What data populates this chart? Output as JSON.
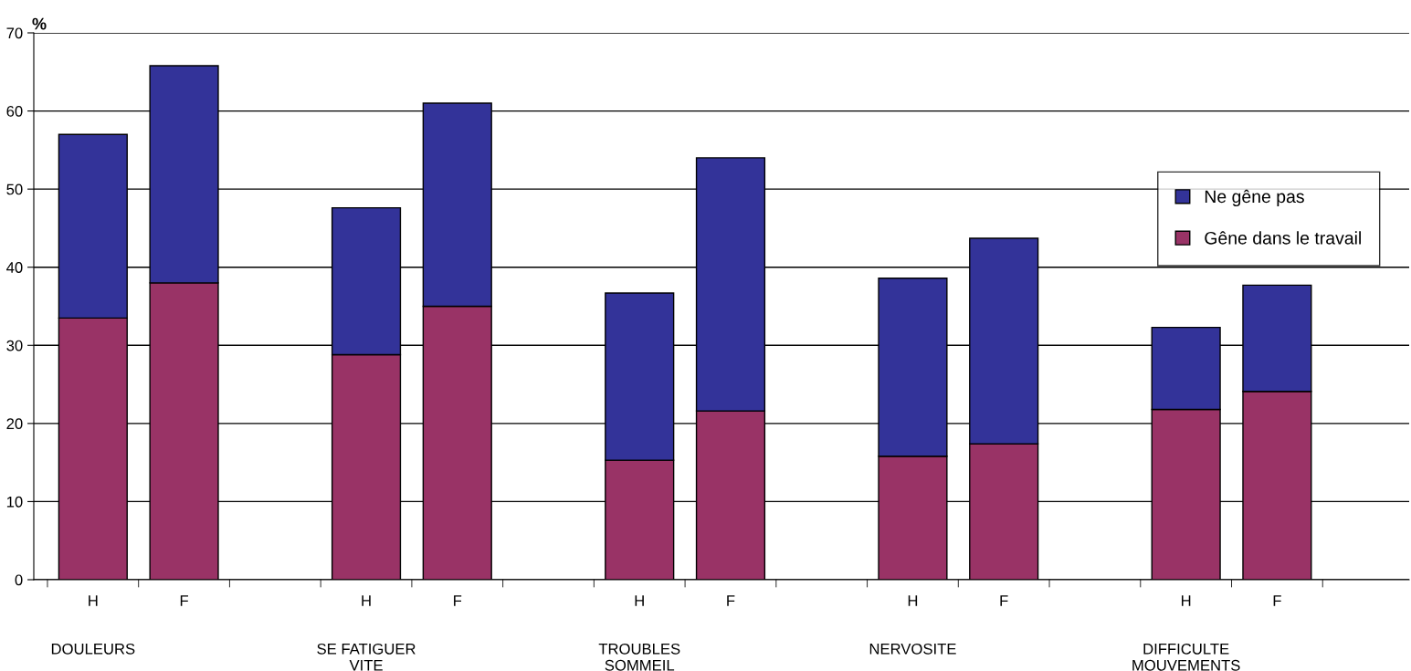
{
  "chart_data": {
    "type": "bar",
    "stacked": true,
    "ylabel": "%",
    "categories": [
      "H",
      "F",
      null,
      "H",
      "F",
      null,
      "H",
      "F",
      null,
      "H",
      "F",
      null,
      "H",
      "F",
      null
    ],
    "series": [
      {
        "name": "Gêne dans le travail",
        "color": "#993366",
        "values": [
          33.5,
          38,
          null,
          28.8,
          35,
          null,
          15.3,
          21.6,
          null,
          15.8,
          17.4,
          null,
          21.8,
          24.1,
          null
        ]
      },
      {
        "name": "Ne gêne pas",
        "color": "#333399",
        "values": [
          23.5,
          27.8,
          null,
          18.8,
          26,
          null,
          21.4,
          32.4,
          null,
          22.8,
          26.3,
          null,
          10.5,
          13.6,
          null
        ]
      }
    ],
    "annotations": [
      "DOULEURS",
      "SE FATIGUER\nVITE",
      "TROUBLES\nSOMMEIL",
      "NERVOSITE",
      "DIFFICULTE\nMOUVEMENTS"
    ],
    "ylim": [
      0,
      70
    ],
    "yticks": [
      0,
      10,
      20,
      30,
      40,
      50,
      60,
      70
    ],
    "grid": "y",
    "legend": "right"
  }
}
